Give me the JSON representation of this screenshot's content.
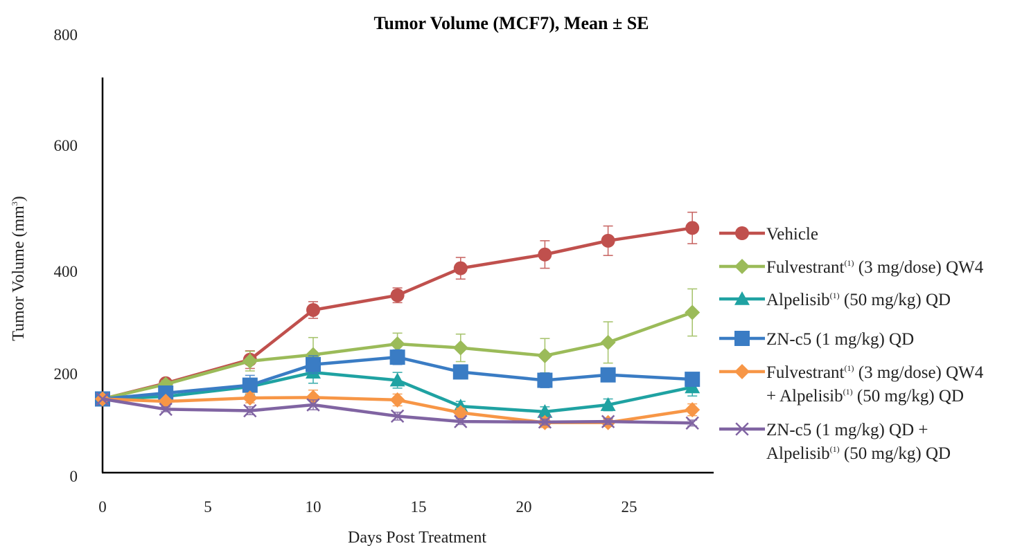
{
  "chart_data": {
    "type": "line",
    "title": "Tumor Volume (MCF7), Mean ± SE",
    "xlabel": "Days Post Treatment",
    "ylabel": "Tumor  Volume (mm3)",
    "ylabel_parts": {
      "main": "Tumor  Volume (mm",
      "sup": "3",
      "close": ")"
    },
    "xlim": [
      0,
      29
    ],
    "ylim": [
      0,
      800
    ],
    "x_ticks": [
      0,
      5,
      10,
      15,
      20,
      25
    ],
    "y_ticks": [
      0,
      200,
      400,
      600,
      800
    ],
    "grid": false,
    "legend_position": "right",
    "series": [
      {
        "name": "Vehicle",
        "label_lines": [
          [
            {
              "t": "Vehicle"
            }
          ]
        ],
        "color": "#c0504d",
        "marker": "circle",
        "x": [
          0,
          3,
          7,
          10,
          14,
          17,
          21,
          24,
          28
        ],
        "y": [
          150,
          182,
          230,
          331,
          361,
          416,
          444,
          472,
          498
        ],
        "err": [
          0,
          7,
          18,
          17,
          15,
          22,
          28,
          30,
          32
        ]
      },
      {
        "name": "Fulvestrant(1) (3 mg/dose) QW4",
        "label_lines": [
          [
            {
              "t": "Fulvestrant"
            },
            {
              "t": "(1)",
              "sup": true
            },
            {
              "t": " (3 mg/dose) QW4"
            }
          ]
        ],
        "color": "#9bbb59",
        "marker": "diamond",
        "x": [
          0,
          3,
          7,
          10,
          14,
          17,
          21,
          24,
          28
        ],
        "y": [
          150,
          180,
          227,
          240,
          262,
          254,
          238,
          265,
          326
        ],
        "err": [
          0,
          7,
          20,
          35,
          22,
          28,
          35,
          42,
          48
        ]
      },
      {
        "name": "Alpelisib(1) (50 mg/kg) QD",
        "label_lines": [
          [
            {
              "t": "Alpelisib"
            },
            {
              "t": "(1)",
              "sup": true
            },
            {
              "t": " (50 mg/kg) QD"
            }
          ]
        ],
        "color": "#1fa2a2",
        "marker": "triangle",
        "x": [
          0,
          3,
          7,
          10,
          14,
          17,
          21,
          24,
          28
        ],
        "y": [
          150,
          155,
          175,
          204,
          188,
          135,
          124,
          138,
          174
        ],
        "err": [
          0,
          6,
          16,
          22,
          16,
          10,
          10,
          12,
          18
        ]
      },
      {
        "name": "ZN-c5 (1 mg/kg) QD",
        "label_lines": [
          [
            {
              "t": "ZN-c5 (1 mg/kg) QD"
            }
          ]
        ],
        "color": "#3a7cc4",
        "marker": "square",
        "x": [
          0,
          3,
          7,
          10,
          14,
          17,
          21,
          24,
          28
        ],
        "y": [
          150,
          162,
          178,
          220,
          235,
          205,
          188,
          199,
          190
        ],
        "err": [
          0,
          7,
          20,
          18,
          15,
          14,
          15,
          14,
          12
        ]
      },
      {
        "name": "Fulvestrant(1) (3 mg/dose) QW4 + Alpelisib(1) (50 mg/kg) QD",
        "label_lines": [
          [
            {
              "t": "Fulvestrant"
            },
            {
              "t": "(1)",
              "sup": true
            },
            {
              "t": " (3 mg/dose) QW4"
            }
          ],
          [
            {
              "t": "+ Alpelisib"
            },
            {
              "t": "(1)",
              "sup": true
            },
            {
              "t": " (50 mg/kg) QD"
            }
          ]
        ],
        "color": "#f79646",
        "marker": "diamond",
        "x": [
          0,
          3,
          7,
          10,
          14,
          17,
          21,
          24,
          28
        ],
        "y": [
          150,
          145,
          152,
          153,
          148,
          122,
          102,
          102,
          128
        ],
        "err": [
          0,
          5,
          10,
          15,
          12,
          9,
          10,
          8,
          12
        ]
      },
      {
        "name": "ZN-c5 (1 mg/kg) QD + Alpelisib(1) (50 mg/kg) QD",
        "label_lines": [
          [
            {
              "t": "ZN-c5 (1 mg/kg) QD +"
            }
          ],
          [
            {
              "t": "Alpelisib"
            },
            {
              "t": "(1)",
              "sup": true
            },
            {
              "t": " (50 mg/kg) QD"
            }
          ]
        ],
        "color": "#8064a2",
        "marker": "x",
        "x": [
          0,
          3,
          7,
          10,
          14,
          17,
          21,
          24,
          28
        ],
        "y": [
          150,
          129,
          126,
          138,
          115,
          104,
          103,
          104,
          101
        ],
        "err": [
          0,
          5,
          8,
          10,
          8,
          6,
          6,
          6,
          6
        ]
      }
    ]
  }
}
